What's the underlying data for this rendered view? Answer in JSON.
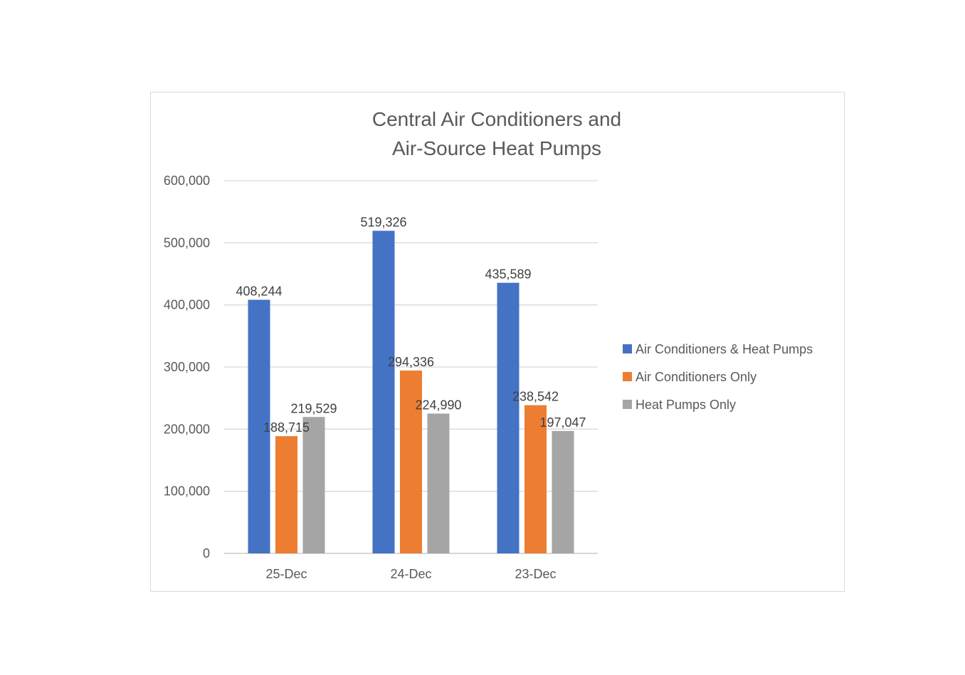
{
  "chart_data": {
    "type": "bar",
    "title": [
      "Central Air Conditioners and",
      "Air-Source Heat Pumps"
    ],
    "xlabel": "",
    "ylabel": "",
    "categories": [
      "25-Dec",
      "24-Dec",
      "23-Dec"
    ],
    "series": [
      {
        "name": "Air Conditioners & Heat Pumps",
        "color": "#4472C4",
        "values": [
          408244,
          519326,
          435589
        ],
        "labels": [
          "408,244",
          "519,326",
          "435,589"
        ]
      },
      {
        "name": "Air Conditioners Only",
        "color": "#ED7D31",
        "values": [
          188715,
          294336,
          238542
        ],
        "labels": [
          "188,715",
          "294,336",
          "238,542"
        ]
      },
      {
        "name": "Heat Pumps Only",
        "color": "#A5A5A5",
        "values": [
          219529,
          224990,
          197047
        ],
        "labels": [
          "219,529",
          "224,990",
          "197,047"
        ]
      }
    ],
    "ylim": [
      0,
      600000
    ],
    "yticks": [
      "0",
      "100,000",
      "200,000",
      "300,000",
      "400,000",
      "500,000",
      "600,000"
    ],
    "grid": true,
    "legend": "right"
  }
}
